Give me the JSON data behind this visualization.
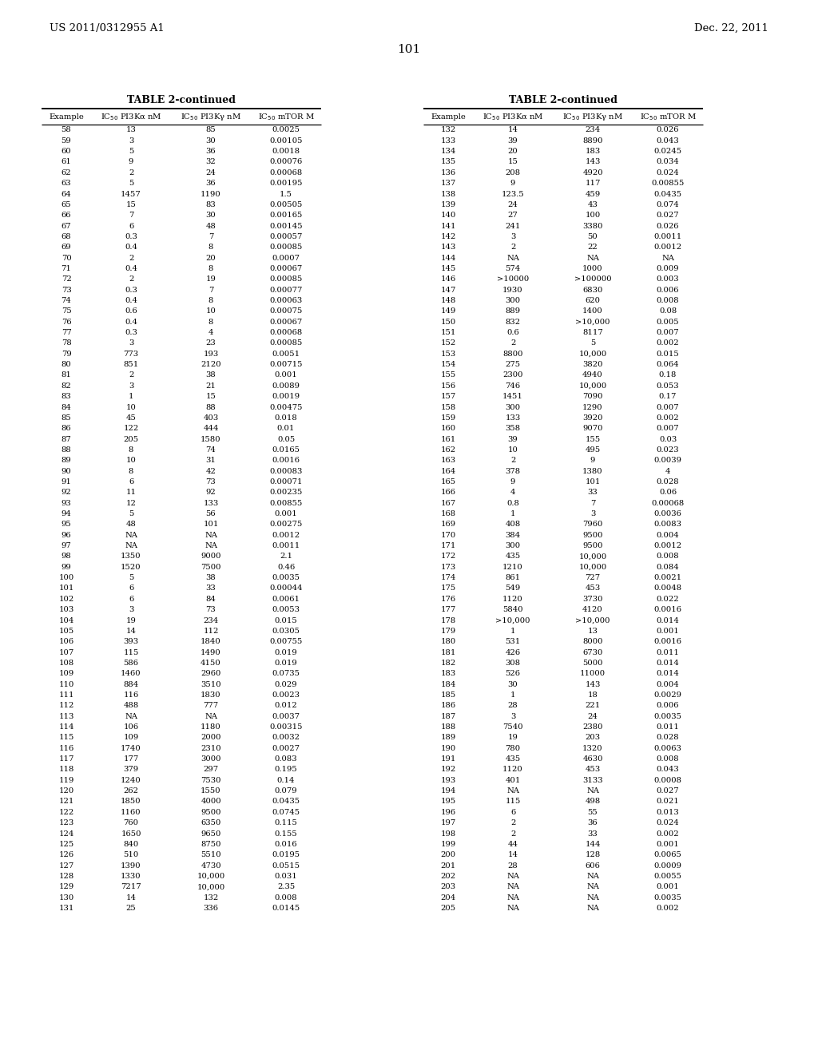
{
  "patent_number": "US 2011/0312955 A1",
  "date": "Dec. 22, 2011",
  "page_number": "101",
  "table_title": "TABLE 2-continued",
  "col_headers": [
    "Example",
    "IC50 PI3Ka nM",
    "IC50 PI3Ky nM",
    "IC50 mTOR M"
  ],
  "left_data": [
    [
      "58",
      "13",
      "85",
      "0.0025"
    ],
    [
      "59",
      "3",
      "30",
      "0.00105"
    ],
    [
      "60",
      "5",
      "36",
      "0.0018"
    ],
    [
      "61",
      "9",
      "32",
      "0.00076"
    ],
    [
      "62",
      "2",
      "24",
      "0.00068"
    ],
    [
      "63",
      "5",
      "36",
      "0.00195"
    ],
    [
      "64",
      "1457",
      "1190",
      "1.5"
    ],
    [
      "65",
      "15",
      "83",
      "0.00505"
    ],
    [
      "66",
      "7",
      "30",
      "0.00165"
    ],
    [
      "67",
      "6",
      "48",
      "0.00145"
    ],
    [
      "68",
      "0.3",
      "7",
      "0.00057"
    ],
    [
      "69",
      "0.4",
      "8",
      "0.00085"
    ],
    [
      "70",
      "2",
      "20",
      "0.0007"
    ],
    [
      "71",
      "0.4",
      "8",
      "0.00067"
    ],
    [
      "72",
      "2",
      "19",
      "0.00085"
    ],
    [
      "73",
      "0.3",
      "7",
      "0.00077"
    ],
    [
      "74",
      "0.4",
      "8",
      "0.00063"
    ],
    [
      "75",
      "0.6",
      "10",
      "0.00075"
    ],
    [
      "76",
      "0.4",
      "8",
      "0.00067"
    ],
    [
      "77",
      "0.3",
      "4",
      "0.00068"
    ],
    [
      "78",
      "3",
      "23",
      "0.00085"
    ],
    [
      "79",
      "773",
      "193",
      "0.0051"
    ],
    [
      "80",
      "851",
      "2120",
      "0.00715"
    ],
    [
      "81",
      "2",
      "38",
      "0.001"
    ],
    [
      "82",
      "3",
      "21",
      "0.0089"
    ],
    [
      "83",
      "1",
      "15",
      "0.0019"
    ],
    [
      "84",
      "10",
      "88",
      "0.00475"
    ],
    [
      "85",
      "45",
      "403",
      "0.018"
    ],
    [
      "86",
      "122",
      "444",
      "0.01"
    ],
    [
      "87",
      "205",
      "1580",
      "0.05"
    ],
    [
      "88",
      "8",
      "74",
      "0.0165"
    ],
    [
      "89",
      "10",
      "31",
      "0.0016"
    ],
    [
      "90",
      "8",
      "42",
      "0.00083"
    ],
    [
      "91",
      "6",
      "73",
      "0.00071"
    ],
    [
      "92",
      "11",
      "92",
      "0.00235"
    ],
    [
      "93",
      "12",
      "133",
      "0.00855"
    ],
    [
      "94",
      "5",
      "56",
      "0.001"
    ],
    [
      "95",
      "48",
      "101",
      "0.00275"
    ],
    [
      "96",
      "NA",
      "NA",
      "0.0012"
    ],
    [
      "97",
      "NA",
      "NA",
      "0.0011"
    ],
    [
      "98",
      "1350",
      "9000",
      "2.1"
    ],
    [
      "99",
      "1520",
      "7500",
      "0.46"
    ],
    [
      "100",
      "5",
      "38",
      "0.0035"
    ],
    [
      "101",
      "6",
      "33",
      "0.00044"
    ],
    [
      "102",
      "6",
      "84",
      "0.0061"
    ],
    [
      "103",
      "3",
      "73",
      "0.0053"
    ],
    [
      "104",
      "19",
      "234",
      "0.015"
    ],
    [
      "105",
      "14",
      "112",
      "0.0305"
    ],
    [
      "106",
      "393",
      "1840",
      "0.00755"
    ],
    [
      "107",
      "115",
      "1490",
      "0.019"
    ],
    [
      "108",
      "586",
      "4150",
      "0.019"
    ],
    [
      "109",
      "1460",
      "2960",
      "0.0735"
    ],
    [
      "110",
      "884",
      "3510",
      "0.029"
    ],
    [
      "111",
      "116",
      "1830",
      "0.0023"
    ],
    [
      "112",
      "488",
      "777",
      "0.012"
    ],
    [
      "113",
      "NA",
      "NA",
      "0.0037"
    ],
    [
      "114",
      "106",
      "1180",
      "0.00315"
    ],
    [
      "115",
      "109",
      "2000",
      "0.0032"
    ],
    [
      "116",
      "1740",
      "2310",
      "0.0027"
    ],
    [
      "117",
      "177",
      "3000",
      "0.083"
    ],
    [
      "118",
      "379",
      "297",
      "0.195"
    ],
    [
      "119",
      "1240",
      "7530",
      "0.14"
    ],
    [
      "120",
      "262",
      "1550",
      "0.079"
    ],
    [
      "121",
      "1850",
      "4000",
      "0.0435"
    ],
    [
      "122",
      "1160",
      "9500",
      "0.0745"
    ],
    [
      "123",
      "760",
      "6350",
      "0.115"
    ],
    [
      "124",
      "1650",
      "9650",
      "0.155"
    ],
    [
      "125",
      "840",
      "8750",
      "0.016"
    ],
    [
      "126",
      "510",
      "5510",
      "0.0195"
    ],
    [
      "127",
      "1390",
      "4730",
      "0.0515"
    ],
    [
      "128",
      "1330",
      "10,000",
      "0.031"
    ],
    [
      "129",
      "7217",
      "10,000",
      "2.35"
    ],
    [
      "130",
      "14",
      "132",
      "0.008"
    ],
    [
      "131",
      "25",
      "336",
      "0.0145"
    ]
  ],
  "right_data": [
    [
      "132",
      "14",
      "234",
      "0.026"
    ],
    [
      "133",
      "39",
      "8890",
      "0.043"
    ],
    [
      "134",
      "20",
      "183",
      "0.0245"
    ],
    [
      "135",
      "15",
      "143",
      "0.034"
    ],
    [
      "136",
      "208",
      "4920",
      "0.024"
    ],
    [
      "137",
      "9",
      "117",
      "0.00855"
    ],
    [
      "138",
      "123.5",
      "459",
      "0.0435"
    ],
    [
      "139",
      "24",
      "43",
      "0.074"
    ],
    [
      "140",
      "27",
      "100",
      "0.027"
    ],
    [
      "141",
      "241",
      "3380",
      "0.026"
    ],
    [
      "142",
      "3",
      "50",
      "0.0011"
    ],
    [
      "143",
      "2",
      "22",
      "0.0012"
    ],
    [
      "144",
      "NA",
      "NA",
      "NA"
    ],
    [
      "145",
      "574",
      "1000",
      "0.009"
    ],
    [
      "146",
      ">10000",
      ">100000",
      "0.003"
    ],
    [
      "147",
      "1930",
      "6830",
      "0.006"
    ],
    [
      "148",
      "300",
      "620",
      "0.008"
    ],
    [
      "149",
      "889",
      "1400",
      "0.08"
    ],
    [
      "150",
      "832",
      ">10,000",
      "0.005"
    ],
    [
      "151",
      "0.6",
      "8117",
      "0.007"
    ],
    [
      "152",
      "2",
      "5",
      "0.002"
    ],
    [
      "153",
      "8800",
      "10,000",
      "0.015"
    ],
    [
      "154",
      "275",
      "3820",
      "0.064"
    ],
    [
      "155",
      "2300",
      "4940",
      "0.18"
    ],
    [
      "156",
      "746",
      "10,000",
      "0.053"
    ],
    [
      "157",
      "1451",
      "7090",
      "0.17"
    ],
    [
      "158",
      "300",
      "1290",
      "0.007"
    ],
    [
      "159",
      "133",
      "3920",
      "0.002"
    ],
    [
      "160",
      "358",
      "9070",
      "0.007"
    ],
    [
      "161",
      "39",
      "155",
      "0.03"
    ],
    [
      "162",
      "10",
      "495",
      "0.023"
    ],
    [
      "163",
      "2",
      "9",
      "0.0039"
    ],
    [
      "164",
      "378",
      "1380",
      "4"
    ],
    [
      "165",
      "9",
      "101",
      "0.028"
    ],
    [
      "166",
      "4",
      "33",
      "0.06"
    ],
    [
      "167",
      "0.8",
      "7",
      "0.00068"
    ],
    [
      "168",
      "1",
      "3",
      "0.0036"
    ],
    [
      "169",
      "408",
      "7960",
      "0.0083"
    ],
    [
      "170",
      "384",
      "9500",
      "0.004"
    ],
    [
      "171",
      "300",
      "9500",
      "0.0012"
    ],
    [
      "172",
      "435",
      "10,000",
      "0.008"
    ],
    [
      "173",
      "1210",
      "10,000",
      "0.084"
    ],
    [
      "174",
      "861",
      "727",
      "0.0021"
    ],
    [
      "175",
      "549",
      "453",
      "0.0048"
    ],
    [
      "176",
      "1120",
      "3730",
      "0.022"
    ],
    [
      "177",
      "5840",
      "4120",
      "0.0016"
    ],
    [
      "178",
      ">10,000",
      ">10,000",
      "0.014"
    ],
    [
      "179",
      "1",
      "13",
      "0.001"
    ],
    [
      "180",
      "531",
      "8000",
      "0.0016"
    ],
    [
      "181",
      "426",
      "6730",
      "0.011"
    ],
    [
      "182",
      "308",
      "5000",
      "0.014"
    ],
    [
      "183",
      "526",
      "11000",
      "0.014"
    ],
    [
      "184",
      "30",
      "143",
      "0.004"
    ],
    [
      "185",
      "1",
      "18",
      "0.0029"
    ],
    [
      "186",
      "28",
      "221",
      "0.006"
    ],
    [
      "187",
      "3",
      "24",
      "0.0035"
    ],
    [
      "188",
      "7540",
      "2380",
      "0.011"
    ],
    [
      "189",
      "19",
      "203",
      "0.028"
    ],
    [
      "190",
      "780",
      "1320",
      "0.0063"
    ],
    [
      "191",
      "435",
      "4630",
      "0.008"
    ],
    [
      "192",
      "1120",
      "453",
      "0.043"
    ],
    [
      "193",
      "401",
      "3133",
      "0.0008"
    ],
    [
      "194",
      "NA",
      "NA",
      "0.027"
    ],
    [
      "195",
      "115",
      "498",
      "0.021"
    ],
    [
      "196",
      "6",
      "55",
      "0.013"
    ],
    [
      "197",
      "2",
      "36",
      "0.024"
    ],
    [
      "198",
      "2",
      "33",
      "0.002"
    ],
    [
      "199",
      "44",
      "144",
      "0.001"
    ],
    [
      "200",
      "14",
      "128",
      "0.0065"
    ],
    [
      "201",
      "28",
      "606",
      "0.0009"
    ],
    [
      "202",
      "NA",
      "NA",
      "0.0055"
    ],
    [
      "203",
      "NA",
      "NA",
      "0.001"
    ],
    [
      "204",
      "NA",
      "NA",
      "0.0035"
    ],
    [
      "205",
      "NA",
      "NA",
      "0.002"
    ]
  ]
}
